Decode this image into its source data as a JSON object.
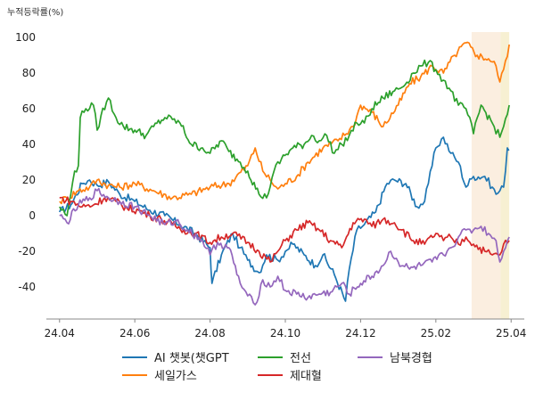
{
  "chart_data": {
    "type": "line",
    "ylabel": "누적등락률(%)",
    "ylim": [
      -58,
      108
    ],
    "yticks": [
      100,
      80,
      60,
      40,
      20,
      0,
      -20,
      -40
    ],
    "xticks": [
      "24.04",
      "24.06",
      "24.08",
      "24.10",
      "24.12",
      "25.02",
      "25.04"
    ],
    "xtick_pos": [
      0,
      2,
      4,
      6,
      8,
      10,
      12
    ],
    "xlim": [
      -0.35,
      12.35
    ],
    "shaded": [
      {
        "from": 10.95,
        "to": 11.72,
        "color": "#fbeee0"
      },
      {
        "from": 11.72,
        "to": 11.95,
        "color": "#f7f0d2"
      }
    ],
    "legend_position": "bottom",
    "series": [
      {
        "name": "AI 챗봇(챗GPT",
        "color": "#1f77b4",
        "keypoints": [
          [
            0,
            2
          ],
          [
            0.3,
            6
          ],
          [
            0.6,
            18
          ],
          [
            0.8,
            20
          ],
          [
            1.0,
            17
          ],
          [
            1.3,
            19
          ],
          [
            1.6,
            12
          ],
          [
            2.0,
            8
          ],
          [
            2.4,
            3
          ],
          [
            2.8,
            0
          ],
          [
            3.2,
            -5
          ],
          [
            3.6,
            -10
          ],
          [
            4.0,
            -18
          ],
          [
            4.05,
            -38
          ],
          [
            4.3,
            -22
          ],
          [
            4.6,
            -10
          ],
          [
            4.8,
            -18
          ],
          [
            5.0,
            -25
          ],
          [
            5.3,
            -32
          ],
          [
            5.5,
            -22
          ],
          [
            5.8,
            -25
          ],
          [
            6.0,
            -20
          ],
          [
            6.2,
            -16
          ],
          [
            6.5,
            -22
          ],
          [
            6.8,
            -28
          ],
          [
            7.0,
            -22
          ],
          [
            7.3,
            -33
          ],
          [
            7.6,
            -48
          ],
          [
            7.7,
            -30
          ],
          [
            7.9,
            -8
          ],
          [
            8.1,
            -5
          ],
          [
            8.4,
            2
          ],
          [
            8.7,
            18
          ],
          [
            8.9,
            20
          ],
          [
            9.2,
            18
          ],
          [
            9.5,
            5
          ],
          [
            9.7,
            8
          ],
          [
            9.8,
            18
          ],
          [
            10.0,
            38
          ],
          [
            10.2,
            44
          ],
          [
            10.4,
            35
          ],
          [
            10.6,
            30
          ],
          [
            10.8,
            16
          ],
          [
            11.0,
            22
          ],
          [
            11.3,
            22
          ],
          [
            11.5,
            16
          ],
          [
            11.6,
            12
          ],
          [
            11.8,
            16
          ],
          [
            11.9,
            38
          ],
          [
            11.95,
            37
          ]
        ]
      },
      {
        "name": "세일가스",
        "color": "#ff7f0e",
        "keypoints": [
          [
            0,
            8
          ],
          [
            0.2,
            10
          ],
          [
            0.5,
            14
          ],
          [
            0.8,
            16
          ],
          [
            1.0,
            20
          ],
          [
            1.3,
            17
          ],
          [
            1.6,
            16
          ],
          [
            2.0,
            18
          ],
          [
            2.5,
            14
          ],
          [
            3.0,
            10
          ],
          [
            3.5,
            12
          ],
          [
            4.0,
            16
          ],
          [
            4.5,
            18
          ],
          [
            5.0,
            28
          ],
          [
            5.2,
            38
          ],
          [
            5.4,
            25
          ],
          [
            5.6,
            20
          ],
          [
            5.8,
            15
          ],
          [
            6.0,
            18
          ],
          [
            6.3,
            22
          ],
          [
            6.6,
            30
          ],
          [
            7.0,
            38
          ],
          [
            7.4,
            42
          ],
          [
            7.8,
            50
          ],
          [
            8.0,
            62
          ],
          [
            8.3,
            58
          ],
          [
            8.6,
            50
          ],
          [
            9.0,
            62
          ],
          [
            9.3,
            74
          ],
          [
            9.6,
            78
          ],
          [
            9.9,
            84
          ],
          [
            10.2,
            80
          ],
          [
            10.5,
            90
          ],
          [
            10.8,
            97
          ],
          [
            11.1,
            90
          ],
          [
            11.4,
            88
          ],
          [
            11.6,
            84
          ],
          [
            11.7,
            75
          ],
          [
            11.8,
            82
          ],
          [
            11.95,
            96
          ]
        ]
      },
      {
        "name": "전선",
        "color": "#2ca02c",
        "keypoints": [
          [
            0,
            5
          ],
          [
            0.2,
            0
          ],
          [
            0.3,
            12
          ],
          [
            0.4,
            25
          ],
          [
            0.5,
            28
          ],
          [
            0.55,
            55
          ],
          [
            0.7,
            60
          ],
          [
            0.9,
            62
          ],
          [
            1.0,
            48
          ],
          [
            1.1,
            56
          ],
          [
            1.3,
            66
          ],
          [
            1.5,
            55
          ],
          [
            1.7,
            50
          ],
          [
            2.0,
            48
          ],
          [
            2.3,
            45
          ],
          [
            2.5,
            50
          ],
          [
            2.8,
            55
          ],
          [
            3.0,
            54
          ],
          [
            3.2,
            52
          ],
          [
            3.5,
            40
          ],
          [
            3.8,
            38
          ],
          [
            4.0,
            35
          ],
          [
            4.3,
            42
          ],
          [
            4.5,
            36
          ],
          [
            4.8,
            30
          ],
          [
            5.0,
            25
          ],
          [
            5.3,
            12
          ],
          [
            5.5,
            10
          ],
          [
            5.7,
            25
          ],
          [
            5.9,
            32
          ],
          [
            6.2,
            38
          ],
          [
            6.5,
            40
          ],
          [
            6.7,
            45
          ],
          [
            6.9,
            42
          ],
          [
            7.1,
            45
          ],
          [
            7.3,
            35
          ],
          [
            7.5,
            40
          ],
          [
            7.7,
            45
          ],
          [
            7.9,
            52
          ],
          [
            8.1,
            52
          ],
          [
            8.3,
            60
          ],
          [
            8.6,
            66
          ],
          [
            8.9,
            70
          ],
          [
            9.1,
            72
          ],
          [
            9.4,
            80
          ],
          [
            9.6,
            84
          ],
          [
            9.8,
            86
          ],
          [
            10.0,
            82
          ],
          [
            10.2,
            76
          ],
          [
            10.4,
            70
          ],
          [
            10.6,
            62
          ],
          [
            10.8,
            60
          ],
          [
            11.0,
            46
          ],
          [
            11.2,
            62
          ],
          [
            11.5,
            52
          ],
          [
            11.7,
            44
          ],
          [
            11.8,
            50
          ],
          [
            11.95,
            62
          ]
        ]
      },
      {
        "name": "제대혈",
        "color": "#d62728",
        "keypoints": [
          [
            0,
            10
          ],
          [
            0.3,
            8
          ],
          [
            0.6,
            5
          ],
          [
            0.9,
            6
          ],
          [
            1.2,
            10
          ],
          [
            1.5,
            8
          ],
          [
            1.8,
            4
          ],
          [
            2.1,
            3
          ],
          [
            2.4,
            0
          ],
          [
            2.7,
            -2
          ],
          [
            3.0,
            -5
          ],
          [
            3.3,
            -8
          ],
          [
            3.6,
            -10
          ],
          [
            4.0,
            -15
          ],
          [
            4.3,
            -12
          ],
          [
            4.6,
            -10
          ],
          [
            5.0,
            -15
          ],
          [
            5.3,
            -20
          ],
          [
            5.6,
            -26
          ],
          [
            5.8,
            -20
          ],
          [
            6.0,
            -14
          ],
          [
            6.3,
            -8
          ],
          [
            6.6,
            -4
          ],
          [
            6.9,
            -8
          ],
          [
            7.2,
            -14
          ],
          [
            7.5,
            -18
          ],
          [
            7.8,
            -4
          ],
          [
            8.1,
            -2
          ],
          [
            8.3,
            -6
          ],
          [
            8.6,
            -2
          ],
          [
            8.9,
            -4
          ],
          [
            9.1,
            -8
          ],
          [
            9.4,
            -14
          ],
          [
            9.7,
            -16
          ],
          [
            10.0,
            -10
          ],
          [
            10.2,
            -14
          ],
          [
            10.4,
            -12
          ],
          [
            10.6,
            -16
          ],
          [
            10.8,
            -12
          ],
          [
            11.0,
            -16
          ],
          [
            11.3,
            -20
          ],
          [
            11.5,
            -22
          ],
          [
            11.7,
            -22
          ],
          [
            11.8,
            -16
          ],
          [
            11.95,
            -14
          ]
        ]
      },
      {
        "name": "남북경협",
        "color": "#9467bd",
        "keypoints": [
          [
            0,
            0
          ],
          [
            0.2,
            -4
          ],
          [
            0.5,
            6
          ],
          [
            0.8,
            10
          ],
          [
            1.0,
            14
          ],
          [
            1.3,
            10
          ],
          [
            1.6,
            8
          ],
          [
            2.0,
            5
          ],
          [
            2.4,
            0
          ],
          [
            2.8,
            -5
          ],
          [
            3.1,
            -3
          ],
          [
            3.4,
            -8
          ],
          [
            3.8,
            -14
          ],
          [
            4.0,
            -22
          ],
          [
            4.2,
            -15
          ],
          [
            4.5,
            -18
          ],
          [
            4.8,
            -38
          ],
          [
            5.0,
            -45
          ],
          [
            5.2,
            -50
          ],
          [
            5.4,
            -36
          ],
          [
            5.6,
            -40
          ],
          [
            5.8,
            -34
          ],
          [
            6.0,
            -42
          ],
          [
            6.3,
            -44
          ],
          [
            6.6,
            -46
          ],
          [
            6.9,
            -44
          ],
          [
            7.2,
            -43
          ],
          [
            7.5,
            -38
          ],
          [
            7.7,
            -44
          ],
          [
            8.0,
            -38
          ],
          [
            8.3,
            -34
          ],
          [
            8.6,
            -28
          ],
          [
            8.8,
            -20
          ],
          [
            9.0,
            -26
          ],
          [
            9.3,
            -30
          ],
          [
            9.6,
            -28
          ],
          [
            9.9,
            -26
          ],
          [
            10.2,
            -22
          ],
          [
            10.4,
            -18
          ],
          [
            10.6,
            -12
          ],
          [
            10.8,
            -8
          ],
          [
            11.0,
            -8
          ],
          [
            11.2,
            -6
          ],
          [
            11.4,
            -10
          ],
          [
            11.6,
            -14
          ],
          [
            11.7,
            -26
          ],
          [
            11.8,
            -20
          ],
          [
            11.95,
            -12
          ]
        ]
      }
    ]
  }
}
